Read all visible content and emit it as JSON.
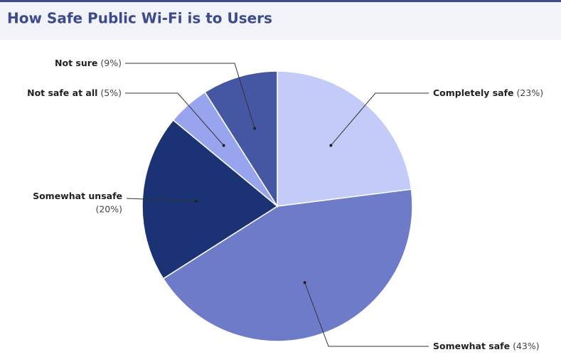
{
  "chart_data": {
    "type": "pie",
    "title": "How Safe Public Wi-Fi is to Users",
    "categories": [
      "Completely safe",
      "Somewhat safe",
      "Somewhat unsafe",
      "Not safe at all",
      "Not sure"
    ],
    "values": [
      23,
      43,
      20,
      5,
      9
    ],
    "value_labels": [
      "(23%)",
      "(43%)",
      "(20%)",
      "(5%)",
      "(9%)"
    ],
    "colors": [
      "#c3cbf8",
      "#6e7bc9",
      "#1b3275",
      "#99a4ee",
      "#4556a3"
    ]
  }
}
